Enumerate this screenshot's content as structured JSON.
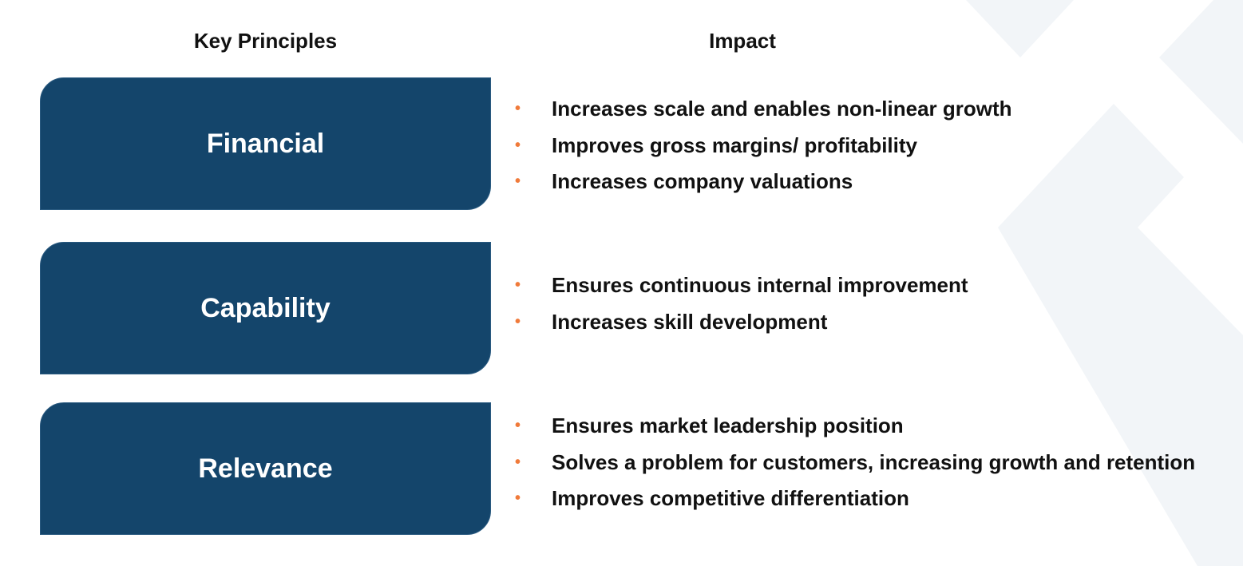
{
  "headers": {
    "principles": "Key Principles",
    "impact": "Impact"
  },
  "rows": [
    {
      "principle": "Financial",
      "impacts": [
        "Increases scale and enables non-linear growth",
        "Improves gross margins/ profitability",
        "Increases company valuations"
      ]
    },
    {
      "principle": "Capability",
      "impacts": [
        "Ensures continuous internal improvement",
        "Increases skill development"
      ]
    },
    {
      "principle": "Relevance",
      "impacts": [
        "Ensures market leadership position",
        "Solves a problem for customers, increasing growth and retention",
        "Improves competitive differentiation"
      ]
    }
  ]
}
